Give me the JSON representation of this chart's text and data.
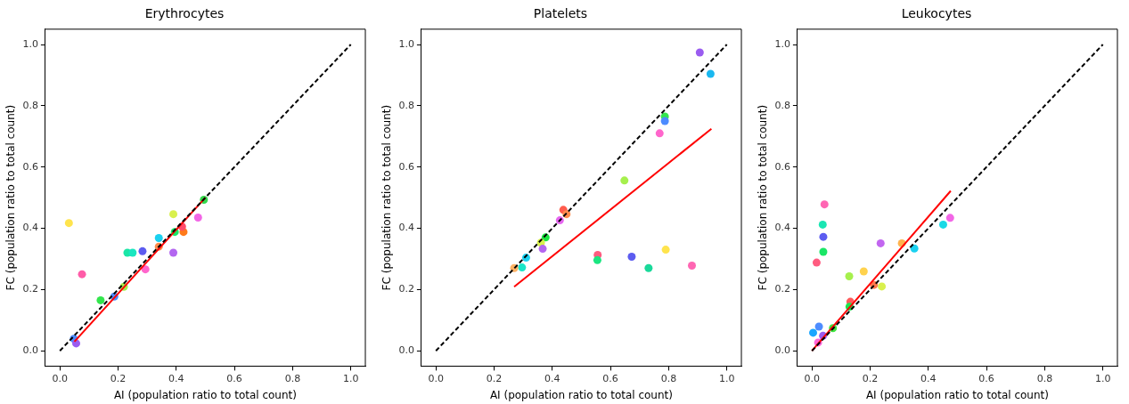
{
  "chart_data": [
    {
      "type": "scatter",
      "title": "Erythrocytes",
      "xlabel": "AI (population ratio to total count)",
      "ylabel": "FC (population ratio to total count)",
      "xlim": [
        -0.05,
        1.05
      ],
      "ylim": [
        -0.05,
        1.05
      ],
      "xticks": [
        {
          "value": 0,
          "label": "0.0"
        },
        {
          "value": 0.2,
          "label": "0.2"
        },
        {
          "value": 0.4,
          "label": "0.4"
        },
        {
          "value": 0.6,
          "label": "0.6"
        },
        {
          "value": 0.8,
          "label": "0.8"
        },
        {
          "value": 1,
          "label": "1.0"
        }
      ],
      "yticks": [
        {
          "value": 0,
          "label": "0.0"
        },
        {
          "value": 0.2,
          "label": "0.2"
        },
        {
          "value": 0.4,
          "label": "0.4"
        },
        {
          "value": 0.6,
          "label": "0.6"
        },
        {
          "value": 0.8,
          "label": "0.8"
        },
        {
          "value": 1,
          "label": "1.0"
        }
      ],
      "grid": false,
      "legend": false,
      "marker": "circle",
      "series": [
        {
          "type": "scatter",
          "x": [
            0.031,
            0.076,
            0.14,
            0.187,
            0.22,
            0.232,
            0.25,
            0.284,
            0.294,
            0.34,
            0.34,
            0.39,
            0.39,
            0.395,
            0.425,
            0.42,
            0.475,
            0.495,
            0.048,
            0.056
          ],
          "values": [
            0.417,
            0.25,
            0.165,
            0.177,
            0.209,
            0.32,
            0.32,
            0.325,
            0.266,
            0.368,
            0.34,
            0.446,
            0.32,
            0.388,
            0.388,
            0.405,
            0.435,
            0.493,
            0.039,
            0.024
          ],
          "colors": [
            "#ffe44d",
            "#ff5ca8",
            "#33e64d",
            "#4d8cff",
            "#a6f04d",
            "#1ae6a6",
            "#1ae6c0",
            "#5c5cf0",
            "#ff66cc",
            "#1ad1f0",
            "#ff8c4d",
            "#d9f04d",
            "#b366f0",
            "#1ae666",
            "#ff7a1a",
            "#ff4d6b",
            "#f266e6",
            "#33d94d",
            "#4d8cff",
            "#9a5cf0"
          ]
        },
        {
          "type": "line",
          "x": [
            0.05,
            0.5
          ],
          "values": [
            0.03,
            0.5
          ],
          "color": "#ff0000",
          "line_style": "solid",
          "marker": "none"
        },
        {
          "type": "line",
          "x": [
            0,
            1
          ],
          "values": [
            0,
            1
          ],
          "color": "#000000",
          "line_style": "dashed",
          "marker": "none"
        }
      ]
    },
    {
      "type": "scatter",
      "title": "Platelets",
      "xlabel": "AI (population ratio to total count)",
      "ylabel": "FC (population ratio to total count)",
      "xlim": [
        -0.05,
        1.05
      ],
      "ylim": [
        -0.05,
        1.05
      ],
      "xticks": [
        {
          "value": 0,
          "label": "0.0"
        },
        {
          "value": 0.2,
          "label": "0.2"
        },
        {
          "value": 0.4,
          "label": "0.4"
        },
        {
          "value": 0.6,
          "label": "0.6"
        },
        {
          "value": 0.8,
          "label": "0.8"
        },
        {
          "value": 1,
          "label": "1.0"
        }
      ],
      "yticks": [
        {
          "value": 0,
          "label": "0.0"
        },
        {
          "value": 0.2,
          "label": "0.2"
        },
        {
          "value": 0.4,
          "label": "0.4"
        },
        {
          "value": 0.6,
          "label": "0.6"
        },
        {
          "value": 0.8,
          "label": "0.8"
        },
        {
          "value": 1,
          "label": "1.0"
        }
      ],
      "grid": false,
      "legend": false,
      "marker": "circle",
      "series": [
        {
          "type": "scatter",
          "x": [
            0.907,
            0.944,
            0.787,
            0.787,
            0.769,
            0.648,
            0.438,
            0.449,
            0.426,
            0.377,
            0.361,
            0.367,
            0.31,
            0.296,
            0.269,
            0.556,
            0.555,
            0.673,
            0.731,
            0.79,
            0.88
          ],
          "values": [
            0.974,
            0.904,
            0.765,
            0.75,
            0.71,
            0.556,
            0.46,
            0.446,
            0.426,
            0.37,
            0.353,
            0.333,
            0.304,
            0.272,
            0.27,
            0.313,
            0.296,
            0.307,
            0.27,
            0.33,
            0.278
          ],
          "colors": [
            "#9a5cf0",
            "#1ab8f0",
            "#33e64d",
            "#4d8cff",
            "#ff66cc",
            "#a6f04d",
            "#ff5c4d",
            "#ff8c4d",
            "#e666f0",
            "#1ae640",
            "#d9f04d",
            "#b366f0",
            "#1ad1f0",
            "#1ae6c8",
            "#ffb366",
            "#ff5c80",
            "#1ae680",
            "#5c5cf0",
            "#1ad99a",
            "#ffe44d",
            "#ff66b3"
          ]
        },
        {
          "type": "line",
          "x": [
            0.269,
            0.947
          ],
          "values": [
            0.209,
            0.725
          ],
          "color": "#ff0000",
          "line_style": "solid",
          "marker": "none"
        },
        {
          "type": "line",
          "x": [
            0,
            1
          ],
          "values": [
            0,
            1
          ],
          "color": "#000000",
          "line_style": "dashed",
          "marker": "none"
        }
      ]
    },
    {
      "type": "scatter",
      "title": "Leukocytes",
      "xlabel": "AI (population ratio to total count)",
      "ylabel": "FC (population ratio to total count)",
      "xlim": [
        -0.05,
        1.05
      ],
      "ylim": [
        -0.05,
        1.05
      ],
      "xticks": [
        {
          "value": 0,
          "label": "0.0"
        },
        {
          "value": 0.2,
          "label": "0.2"
        },
        {
          "value": 0.4,
          "label": "0.4"
        },
        {
          "value": 0.6,
          "label": "0.6"
        },
        {
          "value": 0.8,
          "label": "0.8"
        },
        {
          "value": 1,
          "label": "1.0"
        }
      ],
      "yticks": [
        {
          "value": 0,
          "label": "0.0"
        },
        {
          "value": 0.2,
          "label": "0.2"
        },
        {
          "value": 0.4,
          "label": "0.4"
        },
        {
          "value": 0.6,
          "label": "0.6"
        },
        {
          "value": 0.8,
          "label": "0.8"
        },
        {
          "value": 1,
          "label": "1.0"
        }
      ],
      "grid": false,
      "legend": false,
      "marker": "circle",
      "series": [
        {
          "type": "scatter",
          "x": [
            0.043,
            0.037,
            0.039,
            0.039,
            0.016,
            0.128,
            0.178,
            0.236,
            0.309,
            0.352,
            0.451,
            0.475,
            0.213,
            0.24,
            0.132,
            0.129,
            0.072,
            0.024,
            0.004,
            0.038,
            0.021
          ],
          "values": [
            0.478,
            0.412,
            0.372,
            0.323,
            0.288,
            0.243,
            0.259,
            0.351,
            0.351,
            0.334,
            0.412,
            0.434,
            0.215,
            0.21,
            0.16,
            0.144,
            0.074,
            0.079,
            0.059,
            0.049,
            0.027
          ],
          "colors": [
            "#ff66b3",
            "#1ae6b3",
            "#5c5cf0",
            "#1ae666",
            "#ff5c80",
            "#a6f04d",
            "#ffd24d",
            "#c266f0",
            "#ffb34d",
            "#1ad1f0",
            "#1ad9e6",
            "#f266e6",
            "#ff7a4d",
            "#d9f04d",
            "#ff5c5c",
            "#1ae64d",
            "#40e640",
            "#4d8cff",
            "#1aa6ff",
            "#9a5cf0",
            "#ff66d9"
          ]
        },
        {
          "type": "line",
          "x": [
            0,
            0.477
          ],
          "values": [
            0,
            0.522
          ],
          "color": "#ff0000",
          "line_style": "solid",
          "marker": "none"
        },
        {
          "type": "line",
          "x": [
            0,
            1
          ],
          "values": [
            0,
            1
          ],
          "color": "#000000",
          "line_style": "dashed",
          "marker": "none"
        }
      ]
    }
  ]
}
